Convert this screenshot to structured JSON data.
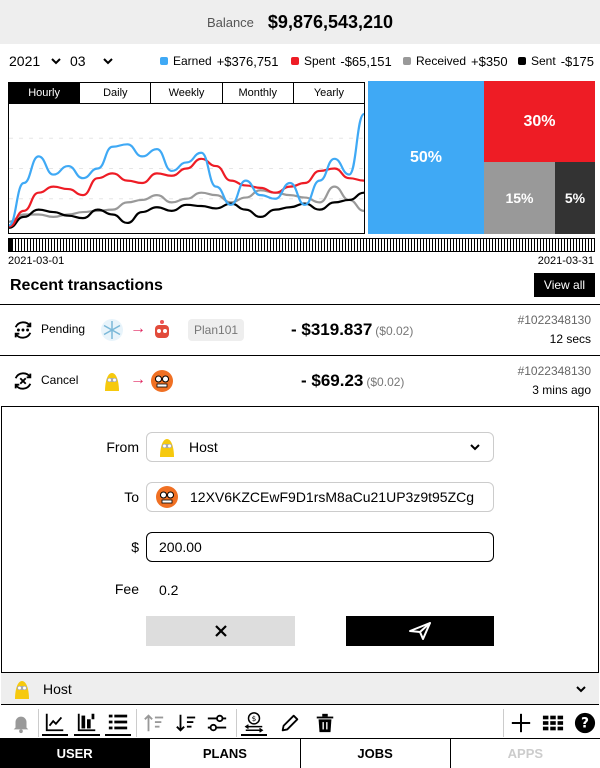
{
  "balance": {
    "label": "Balance",
    "value": "$9,876,543,210"
  },
  "period": {
    "year": "2021",
    "month": "03"
  },
  "legend": [
    {
      "name": "Earned",
      "amount": "+$376,751",
      "color": "#3fa9f5"
    },
    {
      "name": "Spent",
      "amount": "-$65,151",
      "color": "#ee1c25"
    },
    {
      "name": "Received",
      "amount": "+$350",
      "color": "#999999"
    },
    {
      "name": "Sent",
      "amount": "-$175",
      "color": "#000000"
    }
  ],
  "tabs": [
    "Hourly",
    "Daily",
    "Weekly",
    "Monthly",
    "Yearly"
  ],
  "active_tab": "Hourly",
  "chart_data": {
    "type": "line",
    "x": [
      0,
      1,
      2,
      3,
      4,
      5,
      6,
      7,
      8,
      9,
      10,
      11,
      12,
      13,
      14,
      15,
      16,
      17,
      18,
      19,
      20,
      21,
      22,
      23,
      24
    ],
    "series": [
      {
        "name": "Earned",
        "color": "#3fa9f5",
        "values": [
          3,
          38,
          60,
          45,
          52,
          42,
          50,
          68,
          70,
          60,
          66,
          48,
          55,
          63,
          35,
          20,
          40,
          28,
          25,
          38,
          20,
          40,
          58,
          45,
          95
        ]
      },
      {
        "name": "Spent",
        "color": "#ee1c25",
        "values": [
          2,
          15,
          30,
          35,
          33,
          28,
          42,
          46,
          40,
          38,
          46,
          44,
          50,
          58,
          52,
          40,
          36,
          34,
          30,
          35,
          38,
          48,
          50,
          42,
          40
        ]
      },
      {
        "name": "Received",
        "color": "#999999",
        "values": [
          6,
          12,
          12,
          10,
          12,
          14,
          15,
          16,
          22,
          24,
          28,
          22,
          25,
          30,
          28,
          22,
          26,
          32,
          30,
          28,
          26,
          22,
          35,
          24,
          15
        ]
      },
      {
        "name": "Sent",
        "color": "#000000",
        "values": [
          1,
          10,
          16,
          14,
          11,
          9,
          16,
          12,
          5,
          14,
          18,
          15,
          20,
          19,
          17,
          21,
          16,
          10,
          16,
          18,
          21,
          16,
          22,
          24,
          30
        ]
      }
    ],
    "share_blocks": [
      {
        "name": "Earned",
        "percent": 50,
        "label": "50%",
        "color": "#3fa9f5"
      },
      {
        "name": "Spent",
        "percent": 30,
        "label": "30%",
        "color": "#ee1c25"
      },
      {
        "name": "Received",
        "percent": 15,
        "label": "15%",
        "color": "#999999"
      },
      {
        "name": "Sent",
        "percent": 5,
        "label": "5%",
        "color": "#333333"
      }
    ]
  },
  "timeline": {
    "start": "2021-03-01",
    "end": "2021-03-31"
  },
  "recent": {
    "title": "Recent transactions",
    "view_all": "View all"
  },
  "transactions": [
    {
      "status": "Pending",
      "chip": "Plan101",
      "amount": "- $319.837",
      "fee": "($0.02)",
      "id": "#1022348130",
      "time": "12 secs"
    },
    {
      "status": "Cancel",
      "chip": "",
      "amount": "- $69.23",
      "fee": "($0.02)",
      "id": "#1022348130",
      "time": "3 mins ago"
    }
  ],
  "form": {
    "from_label": "From",
    "from_value": "Host",
    "to_label": "To",
    "to_value": "12XV6KZCEwF9D1rsM8aCu21UP3z9t95ZCg",
    "amount_label": "$",
    "amount_value": "200.00",
    "fee_label": "Fee",
    "fee_value": "0.2"
  },
  "account": {
    "name": "Host"
  },
  "toolbar_icons": [
    "bell-icon",
    "line-chart-icon",
    "bar-chart-icon",
    "list-icon",
    "sort-asc-icon",
    "sort-desc-icon",
    "sliders-icon",
    "transfer-icon",
    "pencil-icon",
    "trash-icon",
    "plus-icon",
    "grid-icon",
    "help-icon"
  ],
  "nav": [
    "USER",
    "PLANS",
    "JOBS",
    "APPS"
  ]
}
